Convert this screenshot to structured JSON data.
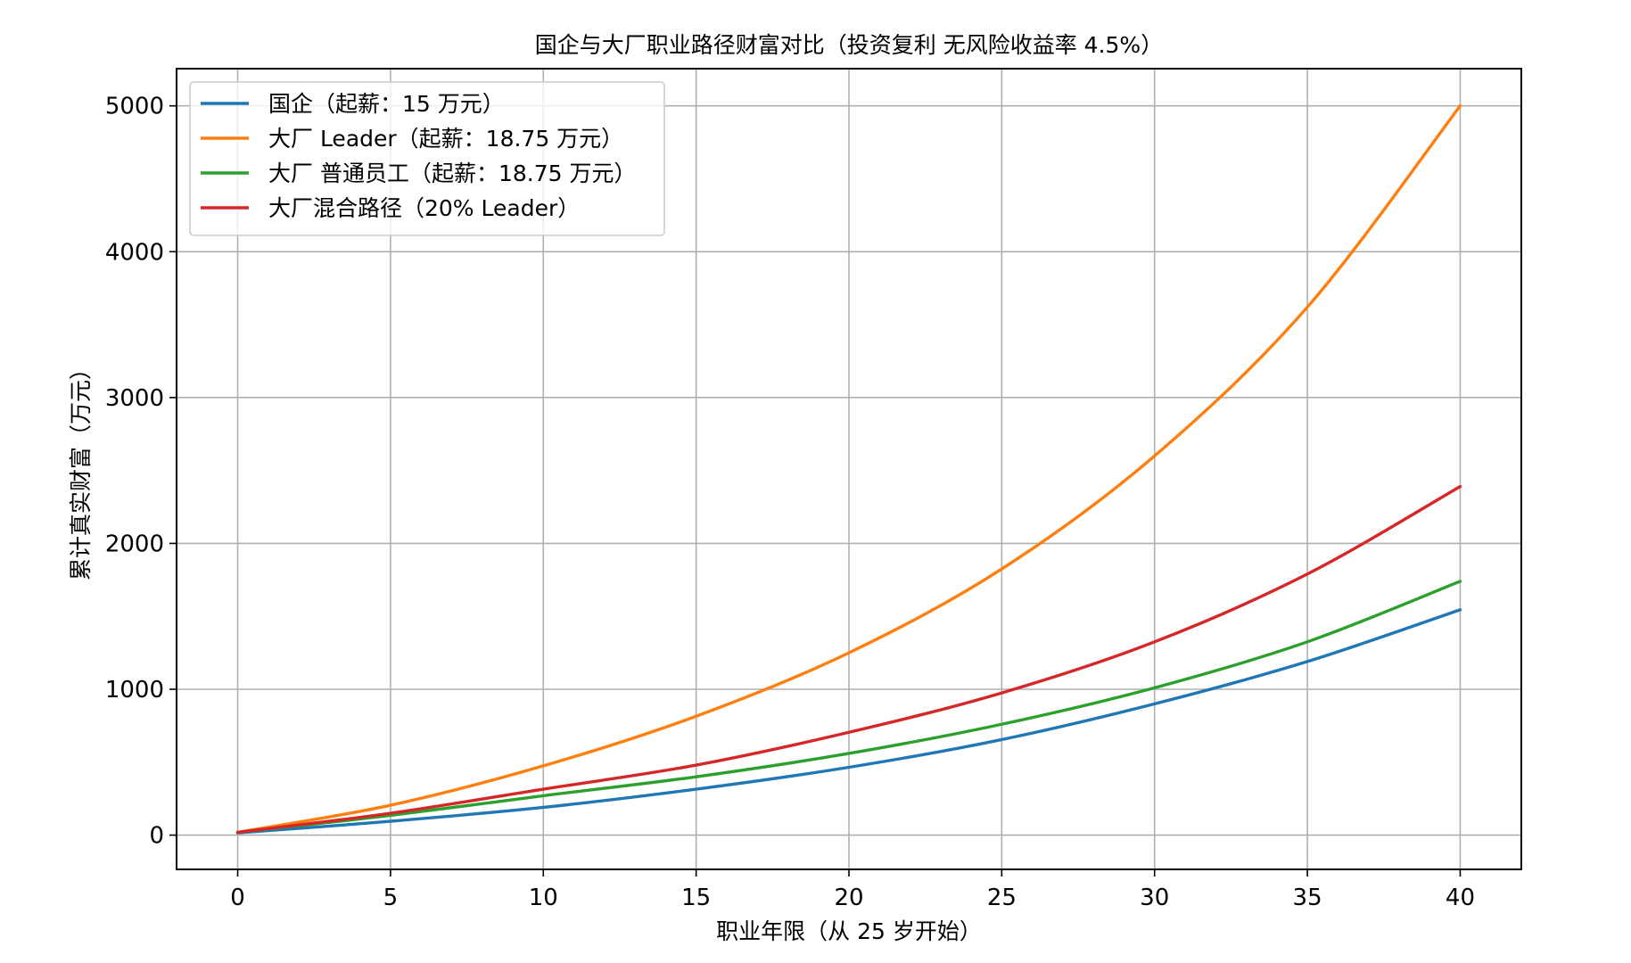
{
  "chart_data": {
    "type": "line",
    "title": "国企与大厂职业路径财富对比（投资复利 无风险收益率 4.5%）",
    "xlabel": "职业年限（从 25 岁开始）",
    "ylabel": "累计真实财富（万元）",
    "xlim": [
      -2,
      42
    ],
    "ylim": [
      -235,
      5255
    ],
    "xticks": [
      0,
      5,
      10,
      15,
      20,
      25,
      30,
      35,
      40
    ],
    "yticks": [
      0,
      1000,
      2000,
      3000,
      4000,
      5000
    ],
    "grid": true,
    "legend_position": "top-left",
    "x": [
      0,
      5,
      10,
      15,
      20,
      25,
      30,
      35,
      40
    ],
    "series": [
      {
        "name": "国企（起薪：15 万元）",
        "color": "#1f77b4",
        "values": [
          15,
          95,
          190,
          315,
          465,
          655,
          900,
          1190,
          1545
        ]
      },
      {
        "name": "大厂 Leader（起薪：18.75 万元）",
        "color": "#ff7f0e",
        "values": [
          19,
          205,
          475,
          815,
          1250,
          1825,
          2600,
          3620,
          5000
        ]
      },
      {
        "name": "大厂 普通员工（起薪：18.75 万元）",
        "color": "#2ca02c",
        "values": [
          19,
          135,
          270,
          400,
          560,
          760,
          1010,
          1325,
          1740
        ]
      },
      {
        "name": "大厂混合路径（20% Leader）",
        "color": "#d62728",
        "values": [
          19,
          150,
          315,
          480,
          705,
          975,
          1325,
          1790,
          2390
        ]
      }
    ]
  }
}
